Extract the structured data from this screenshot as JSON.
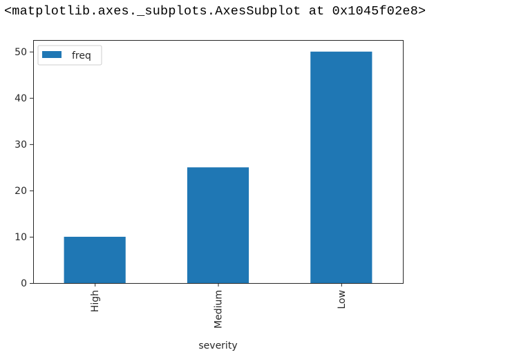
{
  "output": {
    "repr_text": "<matplotlib.axes._subplots.AxesSubplot at 0x1045f02e8>"
  },
  "colors": {
    "bar": "#1f77b4",
    "axes": "#262626"
  },
  "chart_data": {
    "type": "bar",
    "categories": [
      "High",
      "Medium",
      "Low"
    ],
    "series": [
      {
        "name": "freq",
        "values": [
          10,
          25,
          50
        ]
      }
    ],
    "xlabel": "severity",
    "ylabel": "",
    "ylim": [
      0,
      52.5
    ],
    "yticks": [
      0,
      10,
      20,
      30,
      40,
      50
    ],
    "grid": false,
    "legend_position": "top-left",
    "xtick_rotation": "vertical"
  }
}
